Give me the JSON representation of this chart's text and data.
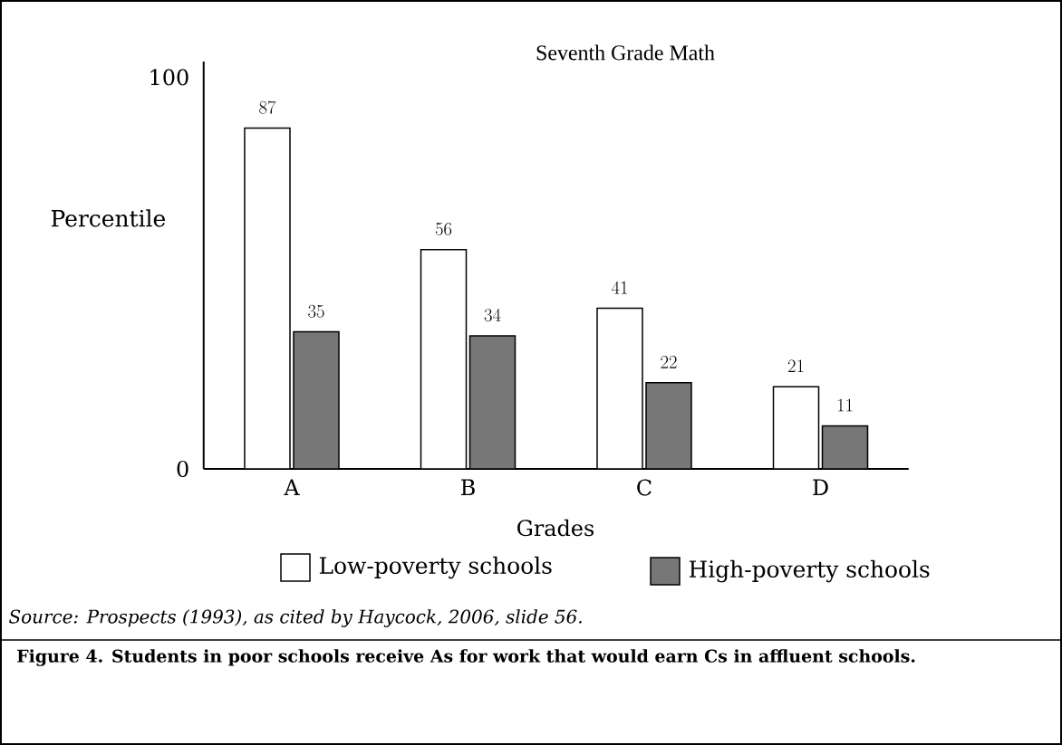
{
  "chart_data": {
    "type": "bar",
    "title": "Seventh Grade Math",
    "xlabel": "Grades",
    "ylabel": "Percentile",
    "categories": [
      "A",
      "B",
      "C",
      "D"
    ],
    "series": [
      {
        "name": "Low-poverty schools",
        "color": "#ffffff",
        "values": [
          87,
          56,
          41,
          21
        ]
      },
      {
        "name": "High-poverty schools",
        "color": "#777777",
        "values": [
          35,
          34,
          22,
          11
        ]
      }
    ],
    "ylim": [
      0,
      104
    ],
    "yticks": [
      0,
      100
    ],
    "data_labels": true,
    "legend": "bottom",
    "annotations": [
      "Source: Prospects (1993), as cited by Haycock, 2006, slide 56.",
      "Figure 4. Students in poor schools receive As for work that would earn Cs in affluent schools."
    ]
  }
}
